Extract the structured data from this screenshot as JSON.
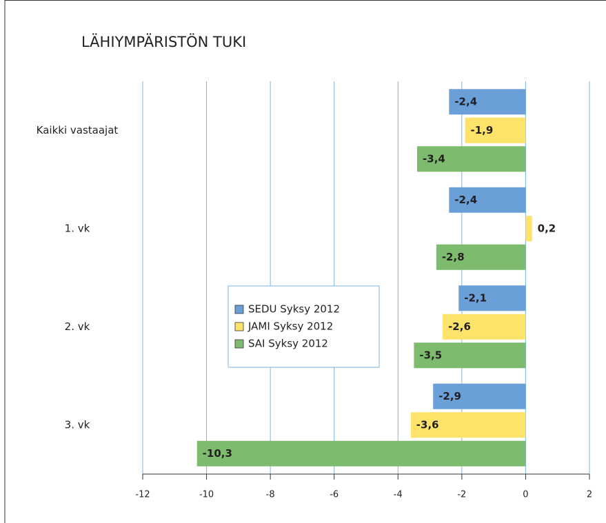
{
  "chart_data": {
    "type": "barh",
    "title": "LÄHIYMPÄRISTÖN TUKI",
    "categories": [
      "Kaikki vastaajat",
      "1. vk",
      "2. vk",
      "3. vk"
    ],
    "series": [
      {
        "name": "SEDU Syksy 2012",
        "color": "#6a9fd8",
        "values": [
          -2.4,
          -2.4,
          -2.1,
          -2.9
        ],
        "value_labels": [
          "-2,4",
          "-2,4",
          "-2,1",
          "-2,9"
        ]
      },
      {
        "name": "JAMI Syksy 2012",
        "color": "#fde36a",
        "values": [
          -1.9,
          0.2,
          -2.6,
          -3.6
        ],
        "value_labels": [
          "-1,9",
          "0,2",
          "-2,6",
          "-3,6"
        ]
      },
      {
        "name": "SAI Syksy 2012",
        "color": "#7dbb6f",
        "values": [
          -3.4,
          -2.8,
          -3.5,
          -10.3
        ],
        "value_labels": [
          "-3,4",
          "-2,8",
          "-3,5",
          "-10,3"
        ]
      }
    ],
    "xlim": [
      -12,
      2
    ],
    "xticks": [
      -12,
      -10,
      -8,
      -6,
      -4,
      -2,
      0,
      2
    ],
    "grid": true
  }
}
